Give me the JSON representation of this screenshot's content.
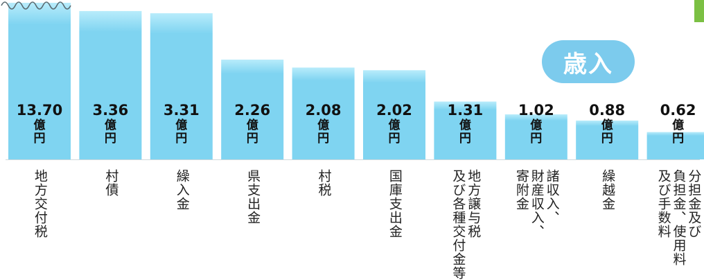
{
  "title": "",
  "badge": "歳入",
  "colors": {
    "bar": "#7fd4f1",
    "bar_top": "#b8ecfb",
    "badge": "#7ccbed",
    "accent_tab": "#7bc043"
  },
  "chart_data": {
    "type": "bar",
    "unit": "億円",
    "unit_chars": [
      "億",
      "円"
    ],
    "ylim": [
      0,
      14
    ],
    "grid": false,
    "legend": "none",
    "categories": [
      [
        "地方交付税"
      ],
      [
        "村債"
      ],
      [
        "繰入金"
      ],
      [
        "県支出金"
      ],
      [
        "村税"
      ],
      [
        "国庫支出金"
      ],
      [
        "地方譲与税",
        "及び各種交付金等"
      ],
      [
        "諸収入、",
        "財産収入、",
        "寄附金"
      ],
      [
        "繰越金"
      ],
      [
        "分担金及び",
        "負担金、使用料",
        "及び手数料"
      ]
    ],
    "values": [
      13.7,
      3.36,
      3.31,
      2.26,
      2.08,
      2.02,
      1.31,
      1.02,
      0.88,
      0.62
    ],
    "value_labels": [
      "13.70",
      "3.36",
      "3.31",
      "2.26",
      "2.08",
      "2.02",
      "1.31",
      "1.02",
      "0.88",
      "0.62"
    ]
  }
}
